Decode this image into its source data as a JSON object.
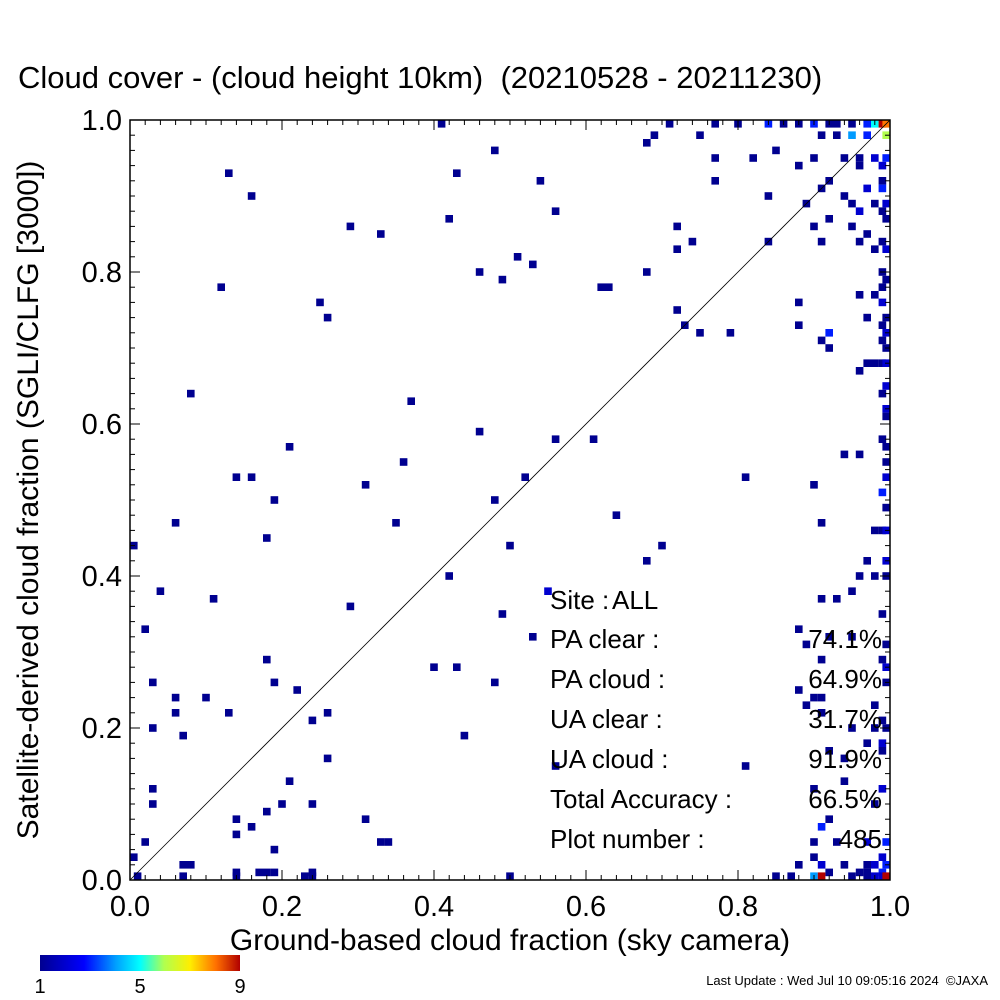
{
  "chart_data": {
    "type": "heatmap",
    "title": "Cloud cover - (cloud height 10km)  (20210528 - 20211230)",
    "xlabel": "Ground-based cloud fraction (sky camera)",
    "ylabel": "Satellite-derived cloud fraction (SGLI/CLFG [3000])",
    "xlim": [
      0.0,
      1.0
    ],
    "ylim": [
      0.0,
      1.0
    ],
    "xticks": [
      "0.0",
      "0.2",
      "0.4",
      "0.6",
      "0.8",
      "1.0"
    ],
    "yticks": [
      "0.0",
      "0.2",
      "0.4",
      "0.6",
      "0.8",
      "1.0"
    ],
    "grid": false,
    "reference_line": "1:1 diagonal",
    "cell_size": 0.01,
    "colorbar": {
      "min": 1,
      "max": 9,
      "ticks": [
        "1",
        "5",
        "9"
      ]
    },
    "stats": [
      {
        "label": "Site :",
        "value": "ALL"
      },
      {
        "label": "PA clear :",
        "value": "74.1%"
      },
      {
        "label": "PA cloud :",
        "value": "64.9%"
      },
      {
        "label": "UA clear :",
        "value": "31.7%"
      },
      {
        "label": "UA cloud :",
        "value": "91.9%"
      },
      {
        "label": "Total Accuracy :",
        "value": "66.5%"
      },
      {
        "label": "Plot number :",
        "value": "485"
      }
    ],
    "points": [
      [
        0.41,
        1.0,
        1
      ],
      [
        0.71,
        1.0,
        1
      ],
      [
        0.77,
        1.0,
        1
      ],
      [
        0.8,
        1.0,
        1
      ],
      [
        0.84,
        1.0,
        3
      ],
      [
        0.86,
        1.0,
        1
      ],
      [
        0.88,
        1.0,
        1
      ],
      [
        0.9,
        1.0,
        3
      ],
      [
        0.92,
        1.0,
        1
      ],
      [
        0.93,
        1.0,
        1
      ],
      [
        0.95,
        1.0,
        1
      ],
      [
        0.97,
        1.0,
        3
      ],
      [
        0.98,
        1.0,
        5
      ],
      [
        0.99,
        1.0,
        9
      ],
      [
        1.0,
        1.0,
        8
      ],
      [
        0.69,
        0.98,
        1
      ],
      [
        0.75,
        0.98,
        1
      ],
      [
        0.91,
        0.98,
        1
      ],
      [
        0.93,
        0.98,
        1
      ],
      [
        0.95,
        0.98,
        4
      ],
      [
        0.97,
        0.98,
        3
      ],
      [
        1.0,
        0.98,
        6
      ],
      [
        0.68,
        0.97,
        1
      ],
      [
        0.48,
        0.96,
        1
      ],
      [
        0.85,
        0.96,
        1
      ],
      [
        0.9,
        0.95,
        1
      ],
      [
        0.94,
        0.95,
        1
      ],
      [
        0.96,
        0.95,
        1
      ],
      [
        0.98,
        0.95,
        2
      ],
      [
        1.0,
        0.95,
        3
      ],
      [
        0.77,
        0.95,
        1
      ],
      [
        0.82,
        0.95,
        1
      ],
      [
        0.96,
        0.94,
        1
      ],
      [
        0.99,
        0.94,
        2
      ],
      [
        0.88,
        0.94,
        1
      ],
      [
        0.92,
        0.92,
        1
      ],
      [
        0.99,
        0.92,
        1
      ],
      [
        0.13,
        0.93,
        1
      ],
      [
        0.43,
        0.93,
        1
      ],
      [
        0.54,
        0.92,
        1
      ],
      [
        0.77,
        0.92,
        1
      ],
      [
        0.91,
        0.91,
        1
      ],
      [
        0.94,
        0.9,
        1
      ],
      [
        0.97,
        0.91,
        2
      ],
      [
        0.99,
        0.91,
        3
      ],
      [
        0.16,
        0.9,
        1
      ],
      [
        0.84,
        0.9,
        1
      ],
      [
        0.89,
        0.89,
        1
      ],
      [
        0.95,
        0.89,
        1
      ],
      [
        0.98,
        0.89,
        1
      ],
      [
        1.0,
        0.89,
        2
      ],
      [
        0.56,
        0.88,
        1
      ],
      [
        0.96,
        0.88,
        2
      ],
      [
        0.99,
        0.88,
        1
      ],
      [
        0.92,
        0.87,
        1
      ],
      [
        0.95,
        0.86,
        1
      ],
      [
        1.0,
        0.87,
        1
      ],
      [
        0.42,
        0.87,
        1
      ],
      [
        0.29,
        0.86,
        1
      ],
      [
        0.72,
        0.86,
        1
      ],
      [
        0.33,
        0.85,
        1
      ],
      [
        0.9,
        0.86,
        1
      ],
      [
        0.97,
        0.85,
        1
      ],
      [
        0.96,
        0.84,
        1
      ],
      [
        0.99,
        0.84,
        1
      ],
      [
        0.72,
        0.83,
        1
      ],
      [
        0.74,
        0.84,
        1
      ],
      [
        0.84,
        0.84,
        1
      ],
      [
        0.91,
        0.84,
        1
      ],
      [
        0.98,
        0.83,
        1
      ],
      [
        1.0,
        0.83,
        2
      ],
      [
        0.51,
        0.82,
        1
      ],
      [
        0.53,
        0.81,
        1
      ],
      [
        0.46,
        0.8,
        1
      ],
      [
        0.68,
        0.8,
        1
      ],
      [
        0.99,
        0.8,
        1
      ],
      [
        0.49,
        0.79,
        1
      ],
      [
        1.0,
        0.79,
        1
      ],
      [
        0.12,
        0.78,
        1
      ],
      [
        0.62,
        0.78,
        1
      ],
      [
        0.63,
        0.78,
        1
      ],
      [
        0.99,
        0.78,
        1
      ],
      [
        0.98,
        0.77,
        1
      ],
      [
        0.96,
        0.77,
        1
      ],
      [
        0.25,
        0.76,
        1
      ],
      [
        0.88,
        0.76,
        1
      ],
      [
        0.99,
        0.76,
        2
      ],
      [
        0.26,
        0.74,
        1
      ],
      [
        0.72,
        0.75,
        1
      ],
      [
        0.97,
        0.74,
        1
      ],
      [
        1.0,
        0.74,
        1
      ],
      [
        0.73,
        0.73,
        1
      ],
      [
        0.88,
        0.73,
        1
      ],
      [
        0.99,
        0.73,
        1
      ],
      [
        0.75,
        0.72,
        1
      ],
      [
        0.79,
        0.72,
        1
      ],
      [
        0.92,
        0.72,
        3
      ],
      [
        1.0,
        0.72,
        2
      ],
      [
        0.91,
        0.71,
        1
      ],
      [
        0.99,
        0.71,
        1
      ],
      [
        0.92,
        0.7,
        1
      ],
      [
        1.0,
        0.7,
        1
      ],
      [
        0.97,
        0.68,
        1
      ],
      [
        0.98,
        0.68,
        1
      ],
      [
        0.99,
        0.68,
        1
      ],
      [
        1.0,
        0.68,
        2
      ],
      [
        0.96,
        0.67,
        1
      ],
      [
        1.0,
        0.65,
        2
      ],
      [
        0.08,
        0.64,
        1
      ],
      [
        0.99,
        0.64,
        1
      ],
      [
        0.37,
        0.63,
        1
      ],
      [
        1.0,
        0.62,
        2
      ],
      [
        1.0,
        0.61,
        1
      ],
      [
        0.46,
        0.59,
        1
      ],
      [
        0.56,
        0.58,
        1
      ],
      [
        0.61,
        0.58,
        1
      ],
      [
        0.99,
        0.58,
        1
      ],
      [
        0.21,
        0.57,
        1
      ],
      [
        1.0,
        0.57,
        1
      ],
      [
        0.94,
        0.56,
        1
      ],
      [
        0.96,
        0.56,
        1
      ],
      [
        0.36,
        0.55,
        1
      ],
      [
        1.0,
        0.55,
        1
      ],
      [
        0.14,
        0.53,
        1
      ],
      [
        0.16,
        0.53,
        1
      ],
      [
        0.52,
        0.53,
        1
      ],
      [
        0.81,
        0.53,
        1
      ],
      [
        1.0,
        0.53,
        2
      ],
      [
        0.31,
        0.52,
        1
      ],
      [
        0.9,
        0.52,
        1
      ],
      [
        0.99,
        0.51,
        3
      ],
      [
        0.19,
        0.5,
        1
      ],
      [
        0.48,
        0.5,
        1
      ],
      [
        1.0,
        0.49,
        1
      ],
      [
        0.64,
        0.48,
        1
      ],
      [
        0.35,
        0.47,
        1
      ],
      [
        0.06,
        0.47,
        1
      ],
      [
        0.91,
        0.47,
        1
      ],
      [
        0.99,
        0.46,
        1
      ],
      [
        0.98,
        0.46,
        1
      ],
      [
        1.0,
        0.46,
        2
      ],
      [
        0.18,
        0.45,
        1
      ],
      [
        0.0,
        0.44,
        1
      ],
      [
        0.5,
        0.44,
        1
      ],
      [
        0.7,
        0.44,
        1
      ],
      [
        0.68,
        0.42,
        1
      ],
      [
        0.97,
        0.42,
        1
      ],
      [
        1.0,
        0.42,
        2
      ],
      [
        0.42,
        0.4,
        1
      ],
      [
        0.96,
        0.4,
        1
      ],
      [
        0.98,
        0.4,
        1
      ],
      [
        1.0,
        0.4,
        1
      ],
      [
        0.04,
        0.38,
        1
      ],
      [
        0.95,
        0.38,
        1
      ],
      [
        0.55,
        0.38,
        2
      ],
      [
        0.11,
        0.37,
        1
      ],
      [
        0.91,
        0.37,
        1
      ],
      [
        0.93,
        0.37,
        1
      ],
      [
        0.29,
        0.36,
        1
      ],
      [
        0.49,
        0.35,
        1
      ],
      [
        0.99,
        0.35,
        1
      ],
      [
        0.02,
        0.33,
        1
      ],
      [
        0.88,
        0.33,
        1
      ],
      [
        0.53,
        0.32,
        1
      ],
      [
        0.92,
        0.32,
        1
      ],
      [
        0.95,
        0.32,
        1
      ],
      [
        0.89,
        0.31,
        1
      ],
      [
        1.0,
        0.31,
        1
      ],
      [
        0.91,
        0.29,
        1
      ],
      [
        0.18,
        0.29,
        1
      ],
      [
        0.4,
        0.28,
        1
      ],
      [
        0.43,
        0.28,
        1
      ],
      [
        0.99,
        0.29,
        1
      ],
      [
        1.0,
        0.28,
        2
      ],
      [
        0.03,
        0.26,
        1
      ],
      [
        0.19,
        0.26,
        1
      ],
      [
        0.48,
        0.26,
        1
      ],
      [
        1.0,
        0.26,
        1
      ],
      [
        0.22,
        0.25,
        1
      ],
      [
        0.88,
        0.25,
        1
      ],
      [
        0.06,
        0.24,
        1
      ],
      [
        0.1,
        0.24,
        1
      ],
      [
        0.9,
        0.24,
        1
      ],
      [
        0.91,
        0.24,
        1
      ],
      [
        0.89,
        0.23,
        1
      ],
      [
        0.98,
        0.23,
        1
      ],
      [
        0.06,
        0.22,
        1
      ],
      [
        0.13,
        0.22,
        1
      ],
      [
        0.26,
        0.22,
        1
      ],
      [
        0.91,
        0.22,
        1
      ],
      [
        0.99,
        0.21,
        1
      ],
      [
        0.24,
        0.21,
        1
      ],
      [
        0.03,
        0.2,
        1
      ],
      [
        0.07,
        0.19,
        1
      ],
      [
        0.44,
        0.19,
        1
      ],
      [
        0.95,
        0.2,
        1
      ],
      [
        0.98,
        0.2,
        1
      ],
      [
        1.0,
        0.2,
        1
      ],
      [
        0.97,
        0.18,
        1
      ],
      [
        0.99,
        0.18,
        2
      ],
      [
        0.92,
        0.17,
        1
      ],
      [
        0.26,
        0.16,
        1
      ],
      [
        0.94,
        0.16,
        1
      ],
      [
        0.99,
        0.17,
        1
      ],
      [
        0.81,
        0.15,
        1
      ],
      [
        0.56,
        0.15,
        1
      ],
      [
        0.21,
        0.13,
        1
      ],
      [
        0.94,
        0.13,
        1
      ],
      [
        0.03,
        0.12,
        1
      ],
      [
        0.9,
        0.12,
        1
      ],
      [
        0.99,
        0.12,
        2
      ],
      [
        0.03,
        0.1,
        1
      ],
      [
        0.2,
        0.1,
        1
      ],
      [
        0.24,
        0.1,
        1
      ],
      [
        0.98,
        0.1,
        1
      ],
      [
        0.18,
        0.09,
        1
      ],
      [
        0.14,
        0.08,
        1
      ],
      [
        0.31,
        0.08,
        1
      ],
      [
        0.92,
        0.08,
        1
      ],
      [
        0.16,
        0.07,
        1
      ],
      [
        0.14,
        0.06,
        1
      ],
      [
        0.91,
        0.07,
        3
      ],
      [
        0.02,
        0.05,
        1
      ],
      [
        0.33,
        0.05,
        1
      ],
      [
        0.34,
        0.05,
        1
      ],
      [
        0.9,
        0.05,
        1
      ],
      [
        0.93,
        0.05,
        1
      ],
      [
        0.97,
        0.05,
        2
      ],
      [
        1.0,
        0.05,
        3
      ],
      [
        0.19,
        0.04,
        1
      ],
      [
        0.0,
        0.03,
        1
      ],
      [
        0.9,
        0.03,
        1
      ],
      [
        0.99,
        0.03,
        2
      ],
      [
        0.07,
        0.02,
        1
      ],
      [
        0.08,
        0.02,
        1
      ],
      [
        0.88,
        0.02,
        1
      ],
      [
        0.91,
        0.02,
        2
      ],
      [
        0.94,
        0.02,
        1
      ],
      [
        0.97,
        0.02,
        1
      ],
      [
        0.98,
        0.02,
        2
      ],
      [
        1.0,
        0.02,
        3
      ],
      [
        0.14,
        0.01,
        1
      ],
      [
        0.17,
        0.01,
        1
      ],
      [
        0.18,
        0.01,
        1
      ],
      [
        0.19,
        0.01,
        1
      ],
      [
        0.24,
        0.01,
        1
      ],
      [
        0.92,
        0.01,
        1
      ],
      [
        0.96,
        0.01,
        1
      ],
      [
        0.97,
        0.01,
        1
      ],
      [
        0.99,
        0.01,
        3
      ],
      [
        0.01,
        0.0,
        1
      ],
      [
        0.07,
        0.0,
        1
      ],
      [
        0.14,
        0.0,
        1
      ],
      [
        0.23,
        0.0,
        1
      ],
      [
        0.24,
        0.0,
        1
      ],
      [
        0.5,
        0.0,
        1
      ],
      [
        0.85,
        0.0,
        1
      ],
      [
        0.87,
        0.0,
        1
      ],
      [
        0.9,
        0.0,
        4
      ],
      [
        0.91,
        0.0,
        9
      ],
      [
        0.95,
        0.0,
        1
      ],
      [
        0.97,
        0.0,
        1
      ],
      [
        0.98,
        0.0,
        2
      ],
      [
        0.99,
        0.0,
        2
      ],
      [
        1.0,
        0.0,
        9
      ]
    ]
  },
  "footer": {
    "last_update": "Last Update : Wed Jul 10 09:05:16 2024  ©JAXA"
  }
}
